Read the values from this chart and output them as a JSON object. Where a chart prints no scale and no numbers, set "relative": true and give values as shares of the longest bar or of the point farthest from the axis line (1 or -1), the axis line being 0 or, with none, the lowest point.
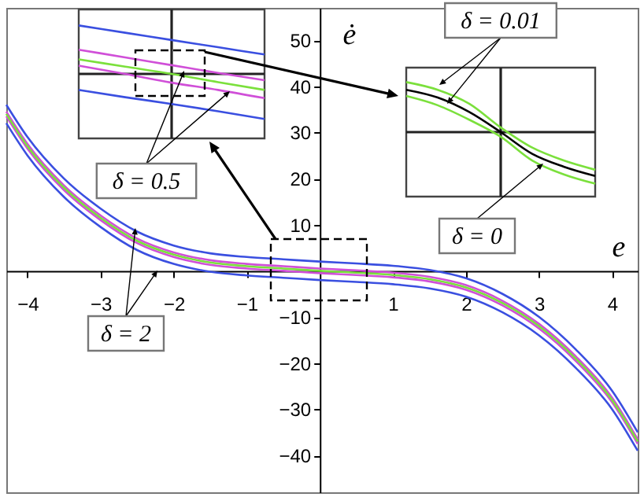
{
  "chart_data": [
    {
      "type": "line",
      "xlabel": "e",
      "ylabel": "ė",
      "x": [
        -4.29,
        -4,
        -3.5,
        -3,
        -2.5,
        -2,
        -1.5,
        -1,
        -0.5,
        0,
        0.5,
        1,
        1.5,
        2,
        2.5,
        3,
        3.5,
        4,
        4.35
      ],
      "series": [
        {
          "color": "#3a4fe0",
          "values": [
            36,
            29,
            20,
            13.5,
            8.5,
            5.5,
            3.8,
            3,
            2.5,
            2,
            1.6,
            1.1,
            0.2,
            -1.6,
            -5,
            -10,
            -17,
            -26,
            -35
          ]
        },
        {
          "color": "#3a4fe0",
          "values": [
            32,
            25,
            16,
            9.5,
            4.5,
            1.5,
            -0.2,
            -1,
            -1.5,
            -2,
            -2.4,
            -2.9,
            -3.8,
            -5.6,
            -9,
            -14,
            -21,
            -30,
            -39
          ]
        },
        {
          "color": "#d04fd8",
          "values": [
            34.5,
            27.5,
            18.5,
            12,
            7,
            4,
            2.3,
            1.5,
            1,
            0.5,
            0.1,
            -0.4,
            -1.3,
            -3.1,
            -6.5,
            -11.5,
            -18.5,
            -27.5,
            -36.5
          ]
        },
        {
          "color": "#d04fd8",
          "values": [
            33.5,
            26.5,
            17.5,
            11,
            6,
            3,
            1.3,
            0.5,
            0,
            -0.5,
            -0.9,
            -1.4,
            -2.3,
            -4.1,
            -7.5,
            -12.5,
            -19.5,
            -28.5,
            -37.5
          ]
        },
        {
          "color": "#7be03c",
          "values": [
            34,
            27,
            18,
            11.5,
            6.5,
            3.5,
            1.8,
            1,
            0.5,
            0,
            -0.4,
            -0.9,
            -1.8,
            -3.6,
            -7,
            -12,
            -19,
            -28,
            -37
          ]
        }
      ],
      "xlim": [
        -4.29,
        4.35
      ],
      "ylim": [
        -48,
        57
      ],
      "xticks": [
        -4,
        -3,
        -2,
        -1,
        1,
        2,
        3,
        4
      ],
      "yticks": [
        -40,
        -30,
        -20,
        -10,
        10,
        20,
        30,
        40,
        50
      ],
      "grid": false,
      "annotations": [
        "δ = 0.01",
        "δ = 0.5",
        "δ = 0",
        "δ = 2"
      ]
    },
    {
      "type": "line",
      "relative": true,
      "categories": [
        null,
        null,
        null,
        null,
        null
      ],
      "ref_lines": [
        {
          "axis": "y",
          "value": 0
        }
      ],
      "series": [
        {
          "color": "#3a4fe0",
          "values": [
            1,
            0.85,
            0.7,
            0.55,
            0.4
          ]
        },
        {
          "color": "#3a4fe0",
          "values": [
            -0.33,
            -0.48,
            -0.62,
            -0.77,
            -0.93
          ]
        },
        {
          "color": "#d04fd8",
          "values": [
            0.5,
            0.34,
            0.18,
            0.02,
            -0.13
          ]
        },
        {
          "color": "#d04fd8",
          "values": [
            0.17,
            0,
            -0.18,
            -0.33,
            -0.5
          ]
        },
        {
          "color": "#7be03c",
          "values": [
            0.3,
            0.15,
            0,
            -0.17,
            -0.33
          ]
        }
      ]
    },
    {
      "type": "line",
      "relative": true,
      "categories": [
        null,
        null,
        null,
        null,
        null,
        null,
        null
      ],
      "ref_lines": [
        {
          "axis": "y",
          "value": 0
        }
      ],
      "series": [
        {
          "color": "#7be03c",
          "values": [
            0.97,
            0.82,
            0.55,
            0.09,
            -0.3,
            -0.55,
            -0.73
          ]
        },
        {
          "color": "#000000",
          "values": [
            0.82,
            0.67,
            0.39,
            0,
            -0.42,
            -0.67,
            -0.85
          ]
        },
        {
          "color": "#7be03c",
          "values": [
            0.7,
            0.52,
            0.24,
            -0.09,
            -0.55,
            -0.82,
            -1
          ]
        }
      ]
    }
  ]
}
